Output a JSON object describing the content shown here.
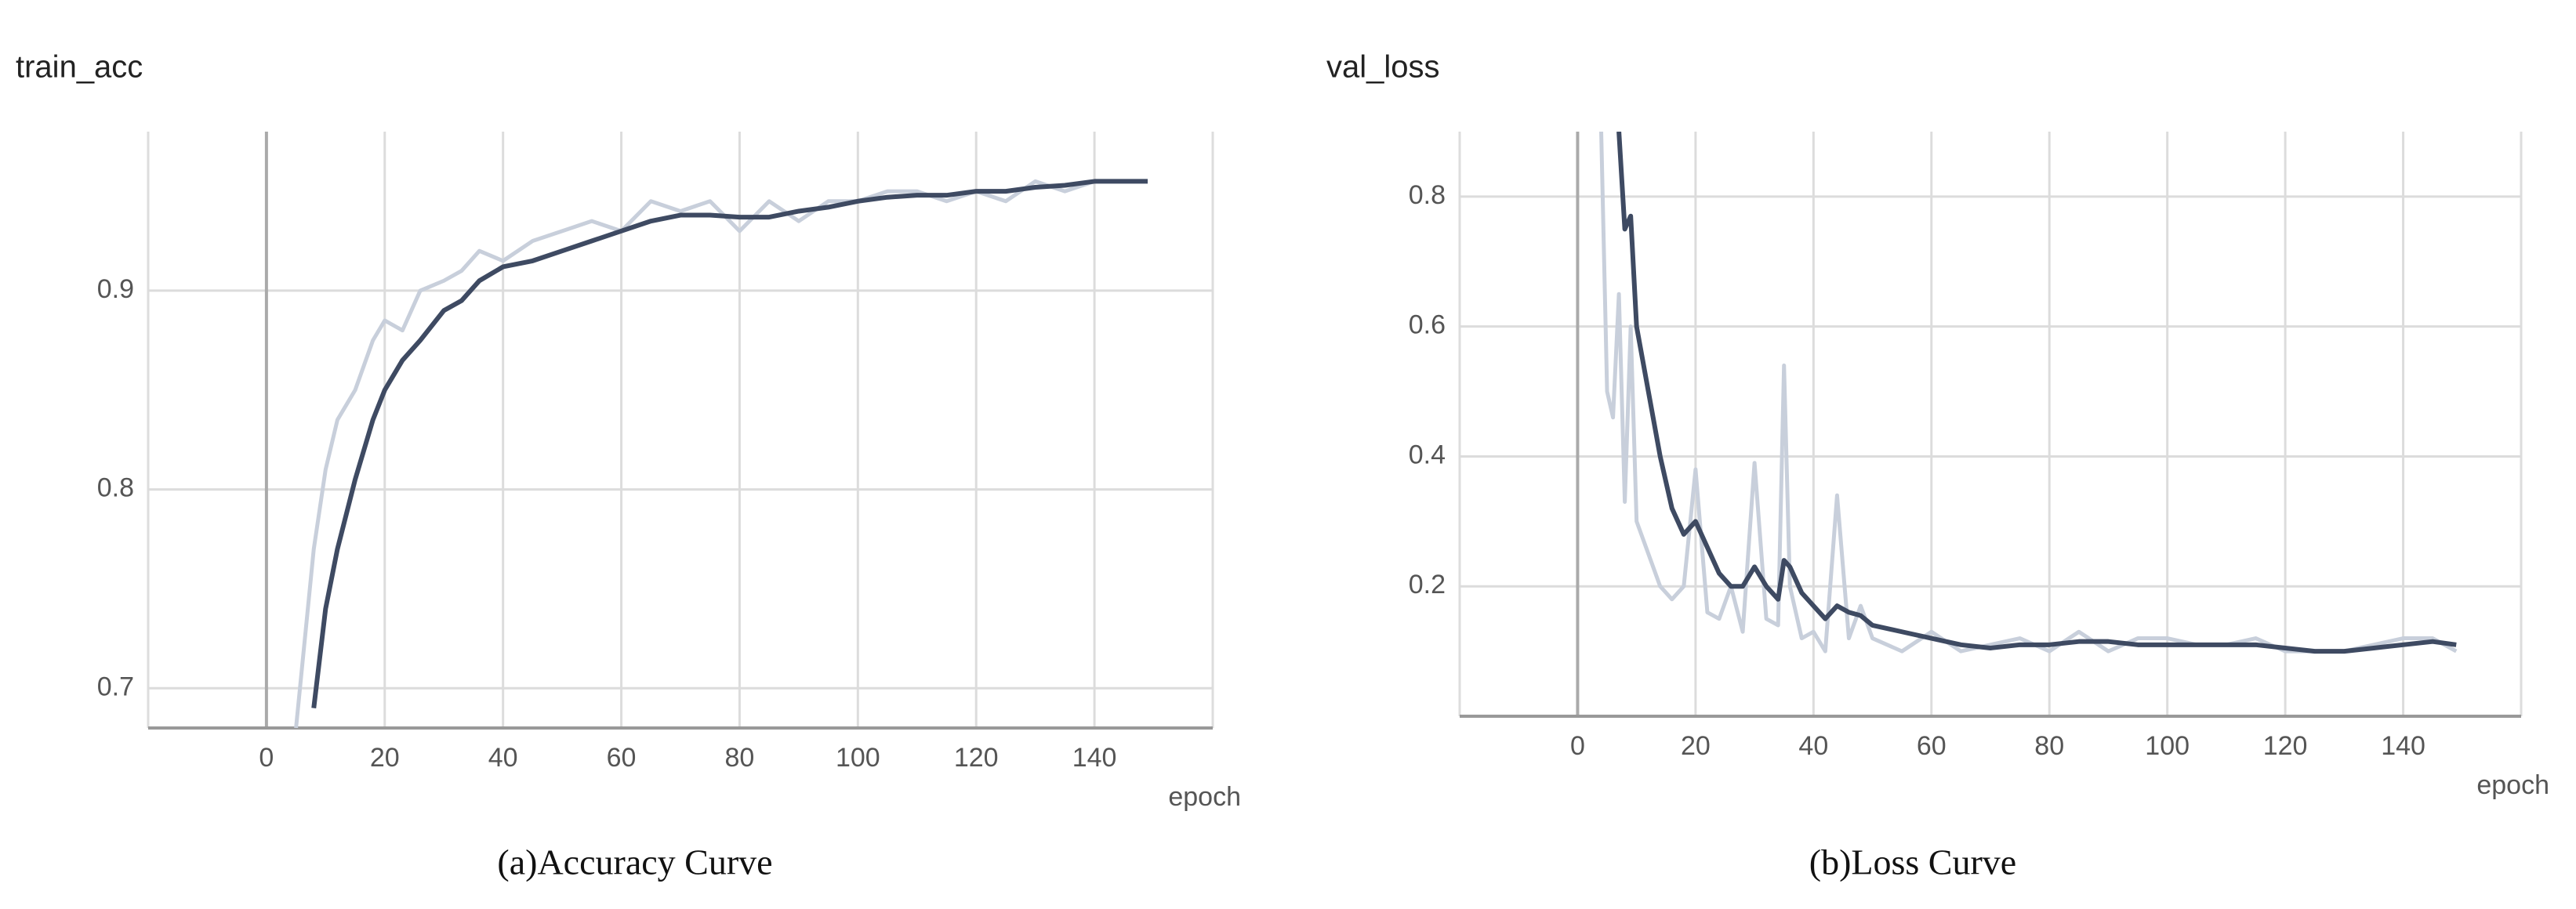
{
  "chart_data": [
    {
      "type": "line",
      "title": "train_acc",
      "xlabel": "epoch",
      "caption": "(a)Accuracy Curve",
      "xlim": [
        -20,
        160
      ],
      "xticks": [
        0,
        20,
        40,
        60,
        80,
        100,
        120,
        140
      ],
      "ylim": [
        0.68,
        0.98
      ],
      "yticks": [
        0.7,
        0.8,
        0.9
      ],
      "grid": true,
      "x": [
        5,
        8,
        10,
        12,
        15,
        18,
        20,
        23,
        26,
        30,
        33,
        36,
        40,
        45,
        50,
        55,
        60,
        65,
        70,
        75,
        80,
        85,
        90,
        95,
        100,
        105,
        110,
        115,
        120,
        125,
        130,
        135,
        140,
        145,
        149
      ],
      "series": [
        {
          "color": "#c8cfdb",
          "values": [
            0.68,
            0.77,
            0.81,
            0.835,
            0.85,
            0.875,
            0.885,
            0.88,
            0.9,
            0.905,
            0.91,
            0.92,
            0.915,
            0.925,
            0.93,
            0.935,
            0.93,
            0.945,
            0.94,
            0.945,
            0.93,
            0.945,
            0.935,
            0.945,
            0.945,
            0.95,
            0.95,
            0.945,
            0.95,
            0.945,
            0.955,
            0.95,
            0.955,
            0.955,
            0.955
          ]
        },
        {
          "color": "#3e4a62",
          "values": [
            null,
            0.69,
            0.74,
            0.77,
            0.805,
            0.835,
            0.85,
            0.865,
            0.875,
            0.89,
            0.895,
            0.905,
            0.912,
            0.915,
            0.92,
            0.925,
            0.93,
            0.935,
            0.938,
            0.938,
            0.937,
            0.937,
            0.94,
            0.942,
            0.945,
            0.947,
            0.948,
            0.948,
            0.95,
            0.95,
            0.952,
            0.953,
            0.955,
            0.955,
            0.955
          ]
        }
      ]
    },
    {
      "type": "line",
      "title": "val_loss",
      "xlabel": "epoch",
      "caption": "(b)Loss Curve",
      "xlim": [
        -20,
        160
      ],
      "xticks": [
        0,
        20,
        40,
        60,
        80,
        100,
        120,
        140
      ],
      "ylim": [
        0,
        0.9
      ],
      "yticks": [
        0.2,
        0.4,
        0.6,
        0.8
      ],
      "grid": true,
      "x": [
        4,
        5,
        6,
        7,
        8,
        9,
        10,
        12,
        14,
        16,
        18,
        20,
        22,
        24,
        26,
        28,
        30,
        32,
        34,
        35,
        36,
        38,
        40,
        42,
        44,
        46,
        48,
        50,
        55,
        60,
        65,
        70,
        75,
        80,
        85,
        90,
        95,
        100,
        105,
        110,
        115,
        120,
        125,
        130,
        135,
        140,
        145,
        149
      ],
      "series": [
        {
          "color": "#c8cfdb",
          "values": [
            0.9,
            0.5,
            0.46,
            0.65,
            0.33,
            0.6,
            0.3,
            0.25,
            0.2,
            0.18,
            0.2,
            0.38,
            0.16,
            0.15,
            0.2,
            0.13,
            0.39,
            0.15,
            0.14,
            0.54,
            0.2,
            0.12,
            0.13,
            0.1,
            0.34,
            0.12,
            0.17,
            0.12,
            0.1,
            0.13,
            0.1,
            0.11,
            0.12,
            0.1,
            0.13,
            0.1,
            0.12,
            0.12,
            0.11,
            0.11,
            0.12,
            0.1,
            0.1,
            0.1,
            0.11,
            0.12,
            0.12,
            0.1
          ]
        },
        {
          "color": "#3e4a62",
          "values": [
            null,
            null,
            null,
            0.9,
            0.75,
            0.77,
            0.6,
            0.5,
            0.4,
            0.32,
            0.28,
            0.3,
            0.26,
            0.22,
            0.2,
            0.2,
            0.23,
            0.2,
            0.18,
            0.24,
            0.23,
            0.19,
            0.17,
            0.15,
            0.17,
            0.16,
            0.155,
            0.14,
            0.13,
            0.12,
            0.11,
            0.105,
            0.11,
            0.11,
            0.115,
            0.115,
            0.11,
            0.11,
            0.11,
            0.11,
            0.11,
            0.105,
            0.1,
            0.1,
            0.105,
            0.11,
            0.115,
            0.11
          ]
        }
      ]
    }
  ]
}
